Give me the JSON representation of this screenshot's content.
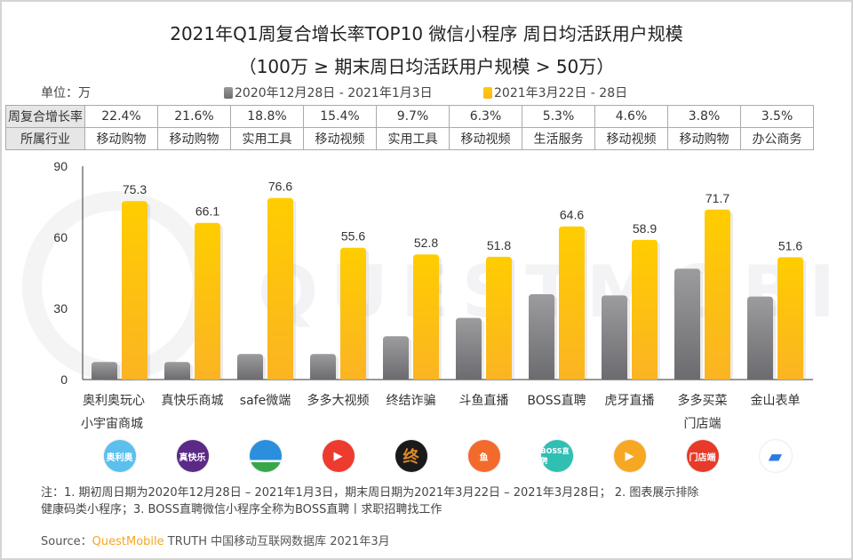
{
  "title": "2021年Q1周复合增长率TOP10 微信小程序 周日均活跃用户规模",
  "subtitle": "（100万 ≥ 期末周日均活跃用户规模 > 50万）",
  "unit_label": "单位：万",
  "legend": [
    {
      "label": "2020年12月28日 - 2021年1月3日",
      "color": "#8a8a8c"
    },
    {
      "label": "2021年3月22日 - 28日",
      "color": "#fdb81e"
    }
  ],
  "table": {
    "row1_header": "周复合增长率",
    "row2_header": "所属行业",
    "growth": [
      "22.4%",
      "21.6%",
      "18.8%",
      "15.4%",
      "9.7%",
      "6.3%",
      "5.3%",
      "4.6%",
      "3.8%",
      "3.5%"
    ],
    "industry": [
      "移动购物",
      "移动购物",
      "实用工具",
      "移动视频",
      "实用工具",
      "移动视频",
      "生活服务",
      "移动视频",
      "移动购物",
      "办公商务"
    ]
  },
  "watermark": "QUESTMOBILE",
  "chart_data": {
    "type": "bar",
    "title": "2021年Q1周复合增长率TOP10 微信小程序 周日均活跃用户规模",
    "xlabel": "",
    "ylabel": "单位：万",
    "ylim": [
      0,
      90
    ],
    "yticks": [
      0,
      30,
      60,
      90
    ],
    "grid": false,
    "legend_position": "top",
    "categories": [
      "奥利奥玩心小宇宙商城",
      "真快乐商城",
      "safe微端",
      "多多大视频",
      "终结诈骗",
      "斗鱼直播",
      "BOSS直聘",
      "虎牙直播",
      "多多买菜门店端",
      "金山表单"
    ],
    "category_lines": [
      [
        "奥利奥玩心",
        "小宇宙商城"
      ],
      [
        "真快乐商城"
      ],
      [
        "safe微端"
      ],
      [
        "多多大视频"
      ],
      [
        "终结诈骗"
      ],
      [
        "斗鱼直播"
      ],
      [
        "BOSS直聘"
      ],
      [
        "虎牙直播"
      ],
      [
        "多多买菜",
        "门店端"
      ],
      [
        "金山表单"
      ]
    ],
    "series": [
      {
        "name": "2020年12月28日 - 2021年1月3日",
        "values": [
          7.4,
          7.4,
          10.8,
          10.8,
          18.3,
          26.0,
          36.0,
          35.5,
          46.8,
          35.0
        ],
        "labeled": false
      },
      {
        "name": "2021年3月22日 - 28日",
        "values": [
          75.3,
          66.1,
          76.6,
          55.6,
          52.8,
          51.8,
          64.6,
          58.9,
          71.7,
          51.6
        ],
        "labeled": true
      }
    ]
  },
  "icons": [
    {
      "name": "oreo-icon",
      "text": "奥利奥",
      "bg": "#5cc0ef"
    },
    {
      "name": "zhenkuaile-icon",
      "text": "真快乐",
      "bg": "#5b2a86"
    },
    {
      "name": "safe-icon",
      "text": "",
      "bg": "#2a8fdc"
    },
    {
      "name": "video-play-icon",
      "text": "▶",
      "bg": "#ee3b2f"
    },
    {
      "name": "anti-fraud-icon",
      "text": "终",
      "bg": "#1a1a1a"
    },
    {
      "name": "douyu-icon",
      "text": "鱼",
      "bg": "#f26a2c"
    },
    {
      "name": "boss-icon",
      "text": "BOSS直聘",
      "bg": "#2fbfb3"
    },
    {
      "name": "huya-icon",
      "text": "▶",
      "bg": "#f7a823"
    },
    {
      "name": "duoduo-maicai-icon",
      "text": "门店端",
      "bg": "#e83a2a"
    },
    {
      "name": "jinshan-form-icon",
      "text": "▰",
      "bg": "#ffffff"
    }
  ],
  "notes": {
    "line1": "注：1. 期初周日期为2020年12月28日 – 2021年1月3日，期末周日期为2021年3月22日 – 2021年3月28日； 2. 图表展示排除",
    "line2": "健康码类小程序；3. BOSS直聘微信小程序全称为BOSS直聘丨求职招聘找工作"
  },
  "source": {
    "prefix": "Source：",
    "brand": "QuestMobile",
    "suffix": " TRUTH 中国移动互联网数据库 2021年3月"
  }
}
